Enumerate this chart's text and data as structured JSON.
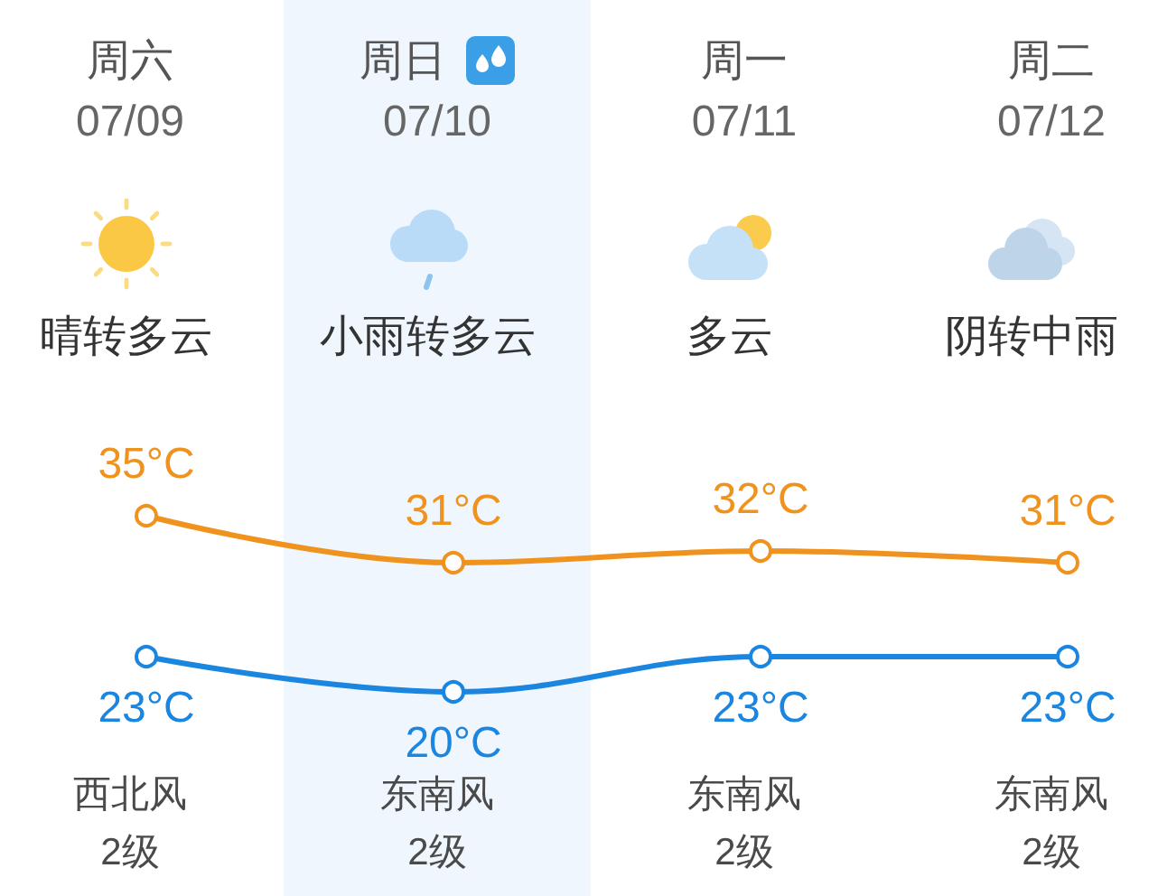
{
  "chart_data": {
    "type": "line",
    "categories": [
      "周六",
      "周日",
      "周一",
      "周二"
    ],
    "series": [
      {
        "color": "#f0921e",
        "values": [
          35,
          31,
          32,
          31
        ],
        "value_labels": [
          "35°C",
          "31°C",
          "32°C",
          "31°C"
        ]
      },
      {
        "color": "#1a86e0",
        "values": [
          23,
          20,
          23,
          23
        ],
        "value_labels": [
          "23°C",
          "20°C",
          "23°C",
          "23°C"
        ]
      }
    ],
    "tick_labels": "x",
    "marker": "circle",
    "line_style": "solid",
    "bands": [
      {
        "axis": "x",
        "from": "周日",
        "to": "周日",
        "color": "#eff6fd"
      }
    ],
    "annotations": [
      "07/09",
      "07/10",
      "07/11",
      "07/12",
      "晴转多云",
      "小雨转多云",
      "多云",
      "阴转中雨",
      "西北风",
      "东南风",
      "东南风",
      "东南风",
      "2级",
      "2级",
      "2级",
      "2级"
    ]
  }
}
